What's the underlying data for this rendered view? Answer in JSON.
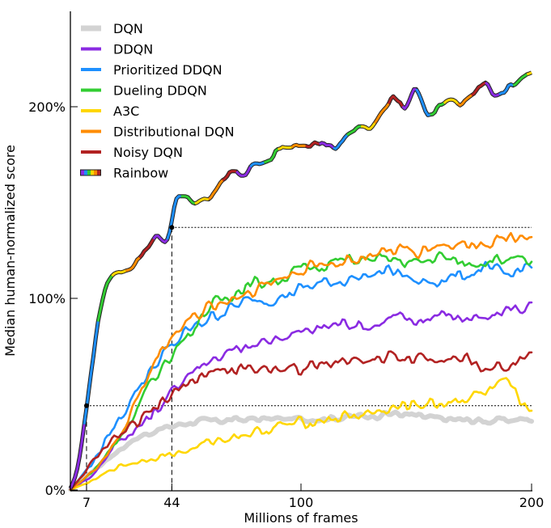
{
  "chart_data": {
    "type": "line",
    "xlabel": "Millions of frames",
    "ylabel": "Median human-normalized score",
    "xlim": [
      0,
      200
    ],
    "ylim": [
      0,
      250
    ],
    "xticks": [
      {
        "v": 7,
        "label": "7"
      },
      {
        "v": 44,
        "label": "44"
      },
      {
        "v": 100,
        "label": "100"
      },
      {
        "v": 200,
        "label": "200"
      }
    ],
    "yticks": [
      {
        "v": 0,
        "label": "0%"
      },
      {
        "v": 100,
        "label": "100%"
      },
      {
        "v": 200,
        "label": "200%"
      }
    ],
    "legend_position": "top-left",
    "reference_lines": [
      {
        "x": 7,
        "y": 44
      },
      {
        "x": 44,
        "y": 137
      }
    ],
    "series": [
      {
        "name": "DQN",
        "color": "#d3d3d3",
        "width": 6,
        "points": [
          [
            0,
            0
          ],
          [
            10,
            10
          ],
          [
            20,
            20
          ],
          [
            30,
            28
          ],
          [
            40,
            32
          ],
          [
            50,
            35
          ],
          [
            60,
            36
          ],
          [
            80,
            37
          ],
          [
            100,
            37
          ],
          [
            120,
            38
          ],
          [
            140,
            40
          ],
          [
            160,
            37
          ],
          [
            180,
            36
          ],
          [
            200,
            37
          ]
        ]
      },
      {
        "name": "DDQN",
        "color": "#8a2be2",
        "width": 2.6,
        "points": [
          [
            0,
            0
          ],
          [
            10,
            8
          ],
          [
            20,
            25
          ],
          [
            30,
            33
          ],
          [
            40,
            45
          ],
          [
            50,
            60
          ],
          [
            60,
            68
          ],
          [
            70,
            72
          ],
          [
            80,
            75
          ],
          [
            90,
            80
          ],
          [
            100,
            82
          ],
          [
            110,
            85
          ],
          [
            120,
            88
          ],
          [
            130,
            85
          ],
          [
            140,
            90
          ],
          [
            150,
            88
          ],
          [
            160,
            92
          ],
          [
            170,
            90
          ],
          [
            180,
            88
          ],
          [
            190,
            95
          ],
          [
            200,
            95
          ]
        ]
      },
      {
        "name": "Prioritized DDQN",
        "color": "#1e90ff",
        "width": 2.6,
        "points": [
          [
            0,
            0
          ],
          [
            10,
            15
          ],
          [
            20,
            35
          ],
          [
            30,
            55
          ],
          [
            40,
            70
          ],
          [
            50,
            82
          ],
          [
            60,
            90
          ],
          [
            70,
            95
          ],
          [
            80,
            100
          ],
          [
            90,
            100
          ],
          [
            100,
            105
          ],
          [
            110,
            108
          ],
          [
            120,
            110
          ],
          [
            130,
            112
          ],
          [
            140,
            115
          ],
          [
            150,
            108
          ],
          [
            160,
            110
          ],
          [
            170,
            112
          ],
          [
            180,
            115
          ],
          [
            190,
            112
          ],
          [
            200,
            118
          ]
        ]
      },
      {
        "name": "Dueling DDQN",
        "color": "#32cd32",
        "width": 2.6,
        "points": [
          [
            0,
            0
          ],
          [
            10,
            10
          ],
          [
            20,
            25
          ],
          [
            30,
            45
          ],
          [
            40,
            65
          ],
          [
            50,
            80
          ],
          [
            60,
            95
          ],
          [
            70,
            103
          ],
          [
            80,
            108
          ],
          [
            90,
            110
          ],
          [
            100,
            115
          ],
          [
            110,
            118
          ],
          [
            120,
            120
          ],
          [
            130,
            120
          ],
          [
            140,
            120
          ],
          [
            150,
            118
          ],
          [
            160,
            122
          ],
          [
            170,
            118
          ],
          [
            180,
            120
          ],
          [
            190,
            120
          ],
          [
            200,
            118
          ]
        ]
      },
      {
        "name": "A3C",
        "color": "#ffd700",
        "width": 2.6,
        "points": [
          [
            0,
            0
          ],
          [
            10,
            5
          ],
          [
            20,
            12
          ],
          [
            30,
            15
          ],
          [
            40,
            18
          ],
          [
            50,
            20
          ],
          [
            60,
            25
          ],
          [
            70,
            28
          ],
          [
            80,
            30
          ],
          [
            90,
            33
          ],
          [
            100,
            35
          ],
          [
            110,
            37
          ],
          [
            120,
            38
          ],
          [
            130,
            40
          ],
          [
            140,
            42
          ],
          [
            150,
            45
          ],
          [
            160,
            45
          ],
          [
            170,
            48
          ],
          [
            180,
            50
          ],
          [
            190,
            55
          ],
          [
            195,
            45
          ],
          [
            200,
            45
          ]
        ]
      },
      {
        "name": "Distributional DQN",
        "color": "#ff8c00",
        "width": 2.6,
        "points": [
          [
            0,
            0
          ],
          [
            10,
            10
          ],
          [
            20,
            25
          ],
          [
            30,
            50
          ],
          [
            40,
            75
          ],
          [
            50,
            88
          ],
          [
            60,
            95
          ],
          [
            70,
            100
          ],
          [
            80,
            105
          ],
          [
            90,
            110
          ],
          [
            100,
            115
          ],
          [
            110,
            118
          ],
          [
            120,
            120
          ],
          [
            130,
            122
          ],
          [
            140,
            125
          ],
          [
            150,
            125
          ],
          [
            160,
            128
          ],
          [
            170,
            128
          ],
          [
            180,
            130
          ],
          [
            190,
            132
          ],
          [
            195,
            135
          ],
          [
            200,
            130
          ]
        ]
      },
      {
        "name": "Noisy DQN",
        "color": "#b22222",
        "width": 2.6,
        "points": [
          [
            0,
            0
          ],
          [
            10,
            15
          ],
          [
            20,
            28
          ],
          [
            30,
            35
          ],
          [
            40,
            45
          ],
          [
            50,
            55
          ],
          [
            60,
            62
          ],
          [
            70,
            62
          ],
          [
            80,
            63
          ],
          [
            90,
            65
          ],
          [
            100,
            63
          ],
          [
            110,
            65
          ],
          [
            120,
            68
          ],
          [
            130,
            68
          ],
          [
            140,
            70
          ],
          [
            150,
            68
          ],
          [
            160,
            70
          ],
          [
            170,
            68
          ],
          [
            180,
            63
          ],
          [
            190,
            65
          ],
          [
            200,
            75
          ]
        ]
      },
      {
        "name": "Rainbow",
        "color": "rainbow",
        "width": 3,
        "points": [
          [
            0,
            0
          ],
          [
            3,
            10
          ],
          [
            5,
            25
          ],
          [
            7,
            44
          ],
          [
            10,
            70
          ],
          [
            12,
            88
          ],
          [
            15,
            105
          ],
          [
            18,
            113
          ],
          [
            20,
            114
          ],
          [
            25,
            115
          ],
          [
            30,
            122
          ],
          [
            35,
            130
          ],
          [
            38,
            135
          ],
          [
            40,
            130
          ],
          [
            42,
            128
          ],
          [
            44,
            138
          ],
          [
            45,
            150
          ],
          [
            47,
            153
          ],
          [
            50,
            153
          ],
          [
            55,
            150
          ],
          [
            60,
            152
          ],
          [
            65,
            160
          ],
          [
            70,
            168
          ],
          [
            75,
            163
          ],
          [
            80,
            172
          ],
          [
            85,
            170
          ],
          [
            90,
            178
          ],
          [
            95,
            180
          ],
          [
            100,
            180
          ],
          [
            105,
            180
          ],
          [
            110,
            181
          ],
          [
            115,
            178
          ],
          [
            120,
            185
          ],
          [
            125,
            190
          ],
          [
            130,
            188
          ],
          [
            135,
            197
          ],
          [
            140,
            205
          ],
          [
            145,
            200
          ],
          [
            150,
            210
          ],
          [
            155,
            195
          ],
          [
            160,
            200
          ],
          [
            165,
            205
          ],
          [
            170,
            200
          ],
          [
            175,
            208
          ],
          [
            180,
            212
          ],
          [
            185,
            205
          ],
          [
            190,
            210
          ],
          [
            195,
            215
          ],
          [
            200,
            218
          ]
        ]
      }
    ],
    "rainbow_colors": [
      "#8a2be2",
      "#1e90ff",
      "#32cd32",
      "#ffd700",
      "#ff8c00",
      "#b22222"
    ]
  }
}
